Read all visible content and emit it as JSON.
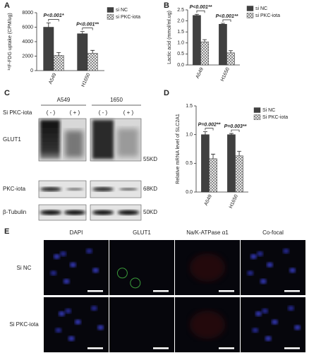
{
  "chart_data": [
    {
      "type": "bar",
      "panel_label": "A",
      "y_label": "¹⁸F-FDG uptake (CPM/ug)",
      "categories": [
        "A549",
        "H1650"
      ],
      "series": [
        {
          "name": "si NC",
          "color": "#404040",
          "values": [
            6000,
            5100
          ],
          "errors": [
            600,
            300
          ]
        },
        {
          "name": "si PKC-iota",
          "color": "#cfcfcf",
          "pattern": "checker",
          "values": [
            2100,
            2400
          ],
          "errors": [
            400,
            400
          ]
        }
      ],
      "annotations": [
        "P<0.001*",
        "P<0.001**"
      ],
      "ylim": [
        0,
        8000
      ],
      "yticks": [
        0,
        2000,
        4000,
        6000,
        8000
      ]
    },
    {
      "type": "bar",
      "panel_label": "B",
      "y_label": "Lactic acid (mmol/ml.ug)",
      "categories": [
        "A549",
        "H1650"
      ],
      "series": [
        {
          "name": "si NC",
          "color": "#404040",
          "values": [
            2.25,
            1.85
          ],
          "errors": [
            0.05,
            0.04
          ]
        },
        {
          "name": "si PKC-iota",
          "color": "#cfcfcf",
          "pattern": "checker",
          "values": [
            1.05,
            0.55
          ],
          "errors": [
            0.1,
            0.1
          ]
        }
      ],
      "annotations": [
        "P<0.001**",
        "P<0.001**"
      ],
      "ylim": [
        0,
        2.5
      ],
      "yticks": [
        {
          "value": 0,
          "label": "0.0"
        },
        0.5,
        {
          "value": 1,
          "label": "1.0"
        },
        1.5,
        {
          "value": 2,
          "label": "2.0"
        },
        2.5
      ]
    },
    {
      "type": "bar",
      "panel_label": "D",
      "y_label": "Relative mRNA level of SLC2A1",
      "categories": [
        "A549",
        "H1650"
      ],
      "series": [
        {
          "name": "Si NC",
          "color": "#404040",
          "values": [
            1.0,
            1.0
          ],
          "errors": [
            0.05,
            0.02
          ]
        },
        {
          "name": "Si PKC-iota",
          "color": "#cfcfcf",
          "pattern": "checker",
          "values": [
            0.58,
            0.63
          ],
          "errors": [
            0.08,
            0.08
          ]
        }
      ],
      "annotations": [
        "P=0.002**",
        "P=0.003**"
      ],
      "ylim": [
        0,
        1.5
      ],
      "yticks": [
        {
          "value": 0,
          "label": "0.0"
        },
        0.5,
        {
          "value": 1,
          "label": "1.0"
        },
        1.5
      ]
    }
  ],
  "blot": {
    "label": "C",
    "groups": [
      "A549",
      "1650"
    ],
    "treatment": "Si PKC-iota",
    "lanes": [
      "( - )",
      "( + )",
      "( - )",
      "( + )"
    ],
    "rows": [
      "GLUT1",
      "PKC-iota",
      "β-Tubulin"
    ],
    "markers": [
      "55KD",
      "68KD",
      "50KD"
    ]
  },
  "microscopy": {
    "label": "E",
    "columns": [
      "DAPI",
      "GLUT1",
      "Na/K-ATPase α1",
      "Co-focal"
    ],
    "rows": [
      "Si NC",
      "Si PKC-iota"
    ]
  }
}
